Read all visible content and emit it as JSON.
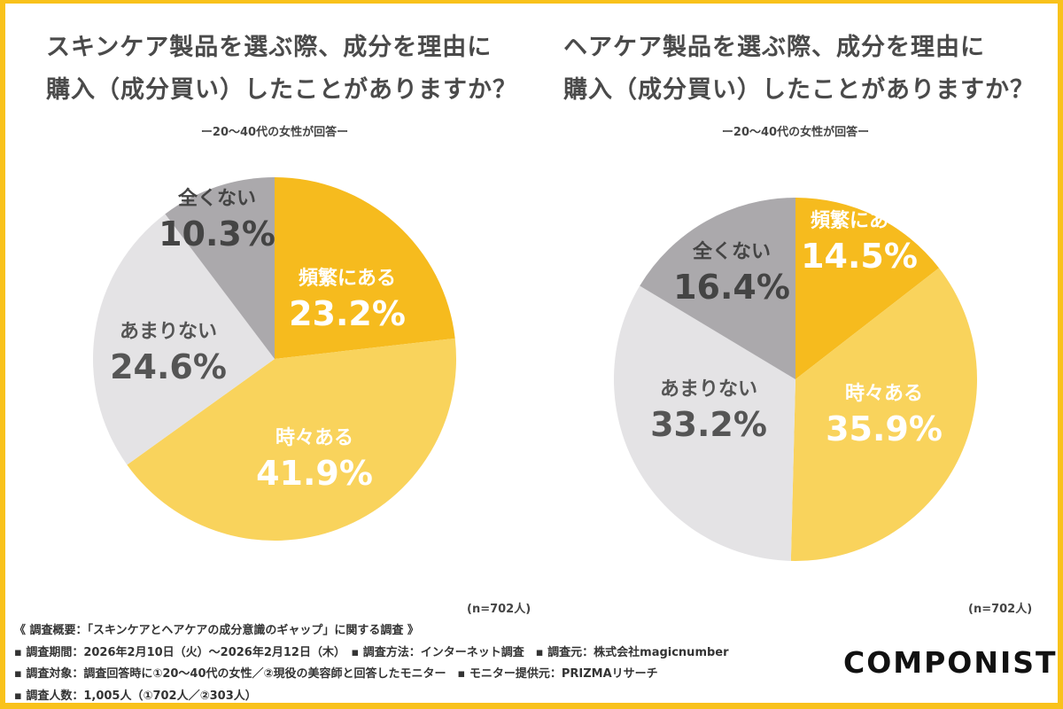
{
  "colors": {
    "border": "#F9C21B",
    "often": "#F6BB1E",
    "sometimes": "#F9D35C",
    "rarely": "#E4E3E5",
    "never": "#ABA9AC"
  },
  "chart_data": [
    {
      "type": "pie",
      "title": [
        "スキンケア製品を選ぶ際、成分を理由に",
        "購入（成分買い）したことがありますか？"
      ],
      "subtitle": "ー20〜40代の女性が回答ー",
      "n_label": "(n=702人)",
      "slices": [
        {
          "label": "頻繁にある",
          "value": 23.2,
          "display": "23.2%"
        },
        {
          "label": "時々ある",
          "value": 41.9,
          "display": "41.9%"
        },
        {
          "label": "あまりない",
          "value": 24.6,
          "display": "24.6%"
        },
        {
          "label": "全くない",
          "value": 10.3,
          "display": "10.3%"
        }
      ]
    },
    {
      "type": "pie",
      "title": [
        "ヘアケア製品を選ぶ際、成分を理由に",
        "購入（成分買い）したことがありますか？"
      ],
      "subtitle": "ー20〜40代の女性が回答ー",
      "n_label": "(n=702人)",
      "slices": [
        {
          "label": "頻繁にある",
          "value": 14.5,
          "display": "14.5%"
        },
        {
          "label": "時々ある",
          "value": 35.9,
          "display": "35.9%"
        },
        {
          "label": "あまりない",
          "value": 33.2,
          "display": "33.2%"
        },
        {
          "label": "全くない",
          "value": 16.4,
          "display": "16.4%"
        }
      ]
    }
  ],
  "notes": [
    "《 調査概要：「スキンケアとヘアケアの成分意識のギャップ」に関する調査 》",
    "▪ 調査期間：2026年2月10日（火）〜2026年2月12日（木）　▪ 調査方法：インターネット調査　▪ 調査元：株式会社magicnumber",
    "▪ 調査対象：調査回答時に①20〜40代の女性／②現役の美容師と回答したモニター　▪ モニター提供元：PRIZMAリサーチ",
    "▪ 調査人数：1,005人（①702人／②303人）"
  ],
  "logo": "COMPONIST"
}
